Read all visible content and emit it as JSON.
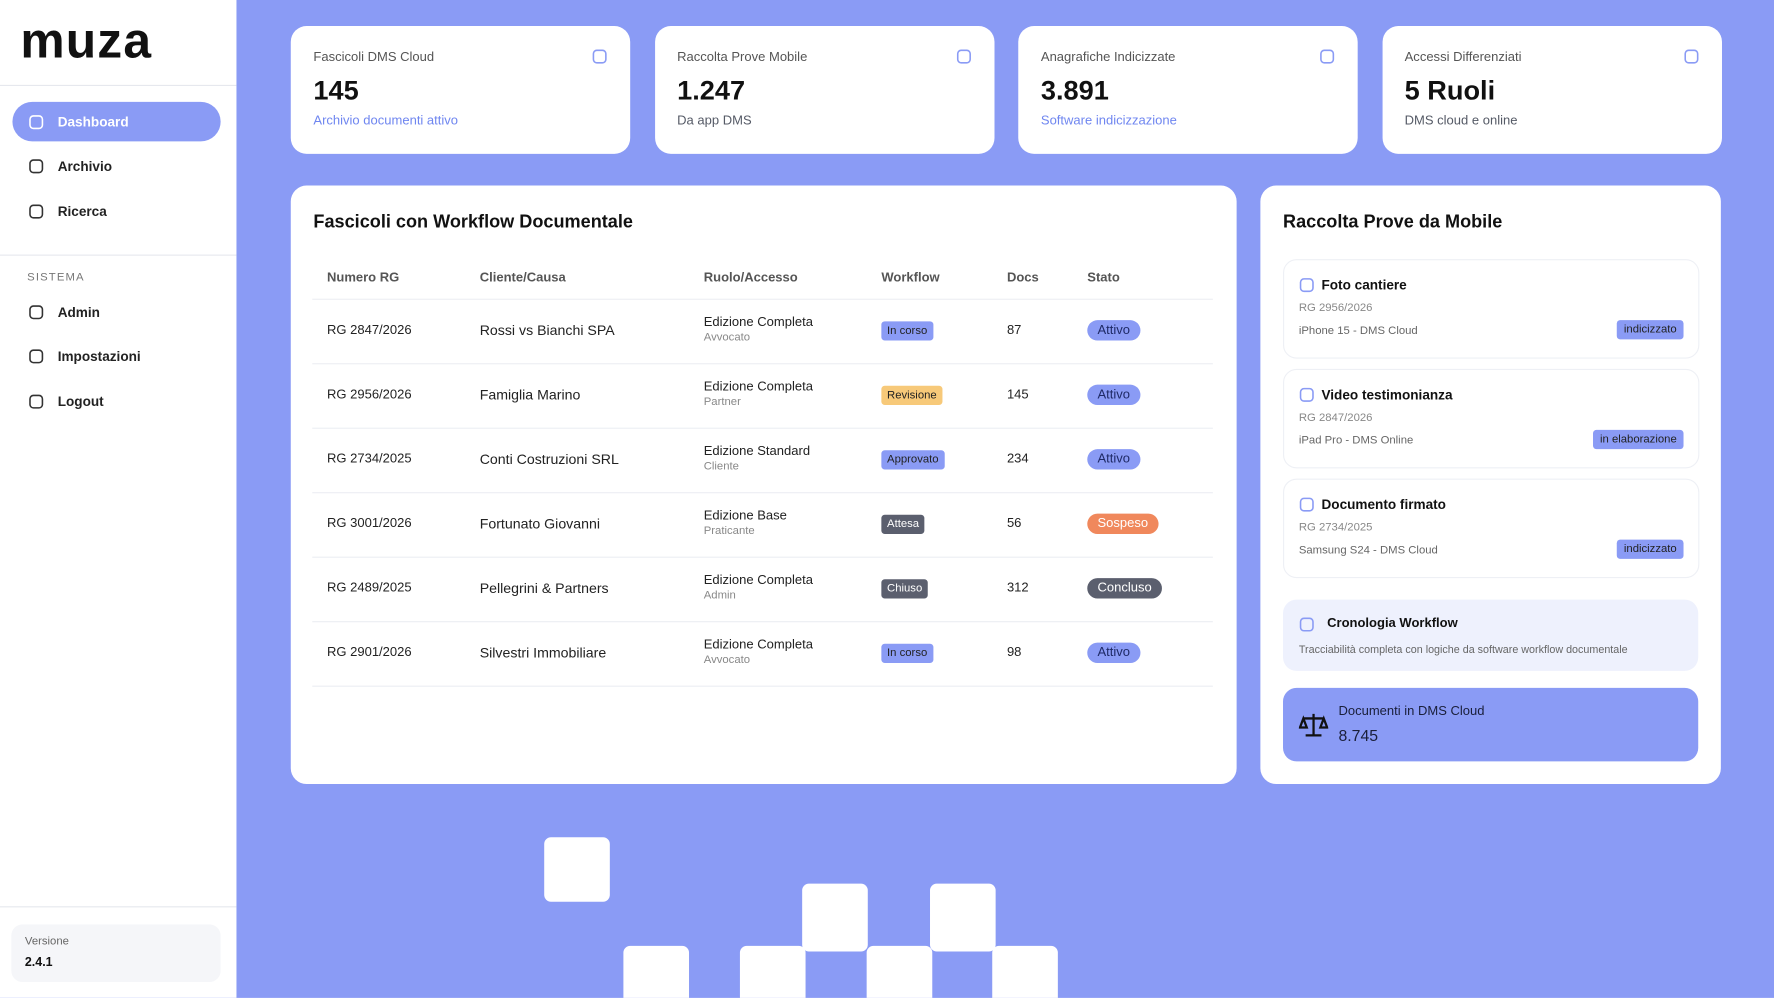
{
  "sidebar": {
    "logo": "muza",
    "nav": [
      "Dashboard",
      "Archivio",
      "Ricerca"
    ],
    "section": "SISTEMA",
    "system_nav": [
      "Admin",
      "Impostazioni",
      "Logout"
    ],
    "version_label": "Versione",
    "version": "2.4.1"
  },
  "stats": [
    {
      "label": "Fascicoli DMS Cloud",
      "value": "145",
      "note": "Archivio documenti attivo",
      "note_color": "#6f86f0"
    },
    {
      "label": "Raccolta Prove Mobile",
      "value": "1.247",
      "note": "Da app DMS",
      "note_color": "#555a66"
    },
    {
      "label": "Anagrafiche Indicizzate",
      "value": "3.891",
      "note": "Software indicizzazione",
      "note_color": "#6f86f0"
    },
    {
      "label": "Accessi Differenziati",
      "value": "5 Ruoli",
      "note": "DMS cloud e online",
      "note_color": "#555a66"
    }
  ],
  "table": {
    "title": "Fascicoli con Workflow Documentale",
    "headers": [
      "Numero RG",
      "Cliente/Causa",
      "Ruolo/Accesso",
      "Workflow",
      "Docs",
      "Stato"
    ],
    "rows": [
      {
        "rg": "RG 2847/2026",
        "client": "Rossi vs Bianchi SPA",
        "role": "Edizione Completa",
        "role_sub": "Avvocato",
        "workflow": "In corso",
        "workflow_color": "#8a9bf5",
        "docs": "87",
        "stato": "Attivo",
        "stato_color": "#8a9bf5"
      },
      {
        "rg": "RG 2956/2026",
        "client": "Famiglia Marino",
        "role": "Edizione Completa",
        "role_sub": "Partner",
        "workflow": "Revisione",
        "workflow_color": "#f7c979",
        "docs": "145",
        "stato": "Attivo",
        "stato_color": "#8a9bf5"
      },
      {
        "rg": "RG 2734/2025",
        "client": "Conti Costruzioni SRL",
        "role": "Edizione Standard",
        "role_sub": "Cliente",
        "workflow": "Approvato",
        "workflow_color": "#8a9bf5",
        "docs": "234",
        "stato": "Attivo",
        "stato_color": "#8a9bf5"
      },
      {
        "rg": "RG 3001/2026",
        "client": "Fortunato Giovanni",
        "role": "Edizione Base",
        "role_sub": "Praticante",
        "workflow": "Attesa",
        "workflow_color": "#5b5f6e",
        "docs": "56",
        "stato": "Sospeso",
        "stato_color": "#f0885c"
      },
      {
        "rg": "RG 2489/2025",
        "client": "Pellegrini & Partners",
        "role": "Edizione Completa",
        "role_sub": "Admin",
        "workflow": "Chiuso",
        "workflow_color": "#5b5f6e",
        "docs": "312",
        "stato": "Concluso",
        "stato_color": "#5b5f6e"
      },
      {
        "rg": "RG 2901/2026",
        "client": "Silvestri Immobiliare",
        "role": "Edizione Completa",
        "role_sub": "Avvocato",
        "workflow": "In corso",
        "workflow_color": "#8a9bf5",
        "docs": "98",
        "stato": "Attivo",
        "stato_color": "#8a9bf5"
      }
    ]
  },
  "mobile": {
    "title": "Raccolta Prove da Mobile",
    "items": [
      {
        "title": "Foto cantiere",
        "rg": "RG 2956/2026",
        "device": "iPhone 15 - DMS Cloud",
        "tag": "indicizzato"
      },
      {
        "title": "Video testimonianza",
        "rg": "RG 2847/2026",
        "device": "iPad Pro - DMS Online",
        "tag": "in elaborazione"
      },
      {
        "title": "Documento firmato",
        "rg": "RG 2734/2025",
        "device": "Samsung S24 - DMS Cloud",
        "tag": "indicizzato"
      }
    ],
    "workflow": {
      "title": "Cronologia Workflow",
      "text": "Tracciabilità completa con logiche da software workflow documentale"
    },
    "dms": {
      "label": "Documenti in DMS Cloud",
      "value": "8.745"
    }
  }
}
